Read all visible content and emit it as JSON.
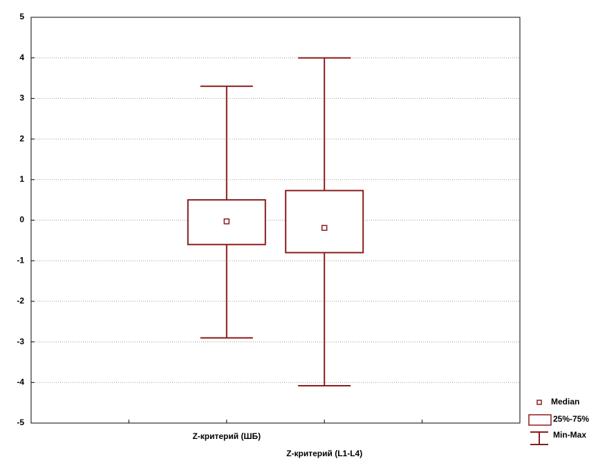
{
  "chart_data": {
    "type": "box",
    "categories": [
      "Z-критерий (ШБ)",
      "Z-критерий (L1-L4)"
    ],
    "median": [
      -0.03,
      -0.19
    ],
    "q1": [
      -0.6,
      -0.8
    ],
    "q3": [
      0.5,
      0.73
    ],
    "min": [
      -2.9,
      -4.08
    ],
    "max": [
      3.3,
      4.0
    ],
    "color": "#8b1a1a",
    "ylim": [
      -5,
      5
    ],
    "yticks": [
      -5,
      -4,
      -3,
      -2,
      -1,
      0,
      1,
      2,
      3,
      4,
      5
    ],
    "grid": true,
    "legend": {
      "position": "right",
      "entries": [
        "Median",
        "25%-75%",
        "Min-Max"
      ]
    }
  }
}
